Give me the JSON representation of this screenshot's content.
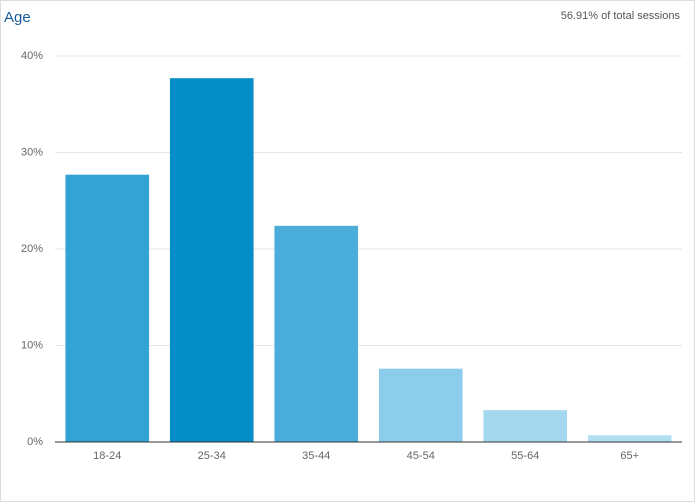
{
  "chart_data": {
    "type": "bar",
    "title": "Age",
    "subtitle": "56.91% of total sessions",
    "categories": [
      "18-24",
      "25-34",
      "35-44",
      "45-54",
      "55-64",
      "65+"
    ],
    "values": [
      27.7,
      37.7,
      22.4,
      7.6,
      3.3,
      0.7
    ],
    "colors": [
      "#33a3d4",
      "#058dc7",
      "#4aadda",
      "#8ccdeb",
      "#a3d8ef",
      "#b2def2"
    ],
    "ylim": [
      0,
      40
    ],
    "yticks": [
      {
        "value": 0,
        "label": "0%"
      },
      {
        "value": 10,
        "label": "10%"
      },
      {
        "value": 20,
        "label": "20%"
      },
      {
        "value": 30,
        "label": "30%"
      },
      {
        "value": 40,
        "label": "40%"
      }
    ],
    "grid": true
  }
}
